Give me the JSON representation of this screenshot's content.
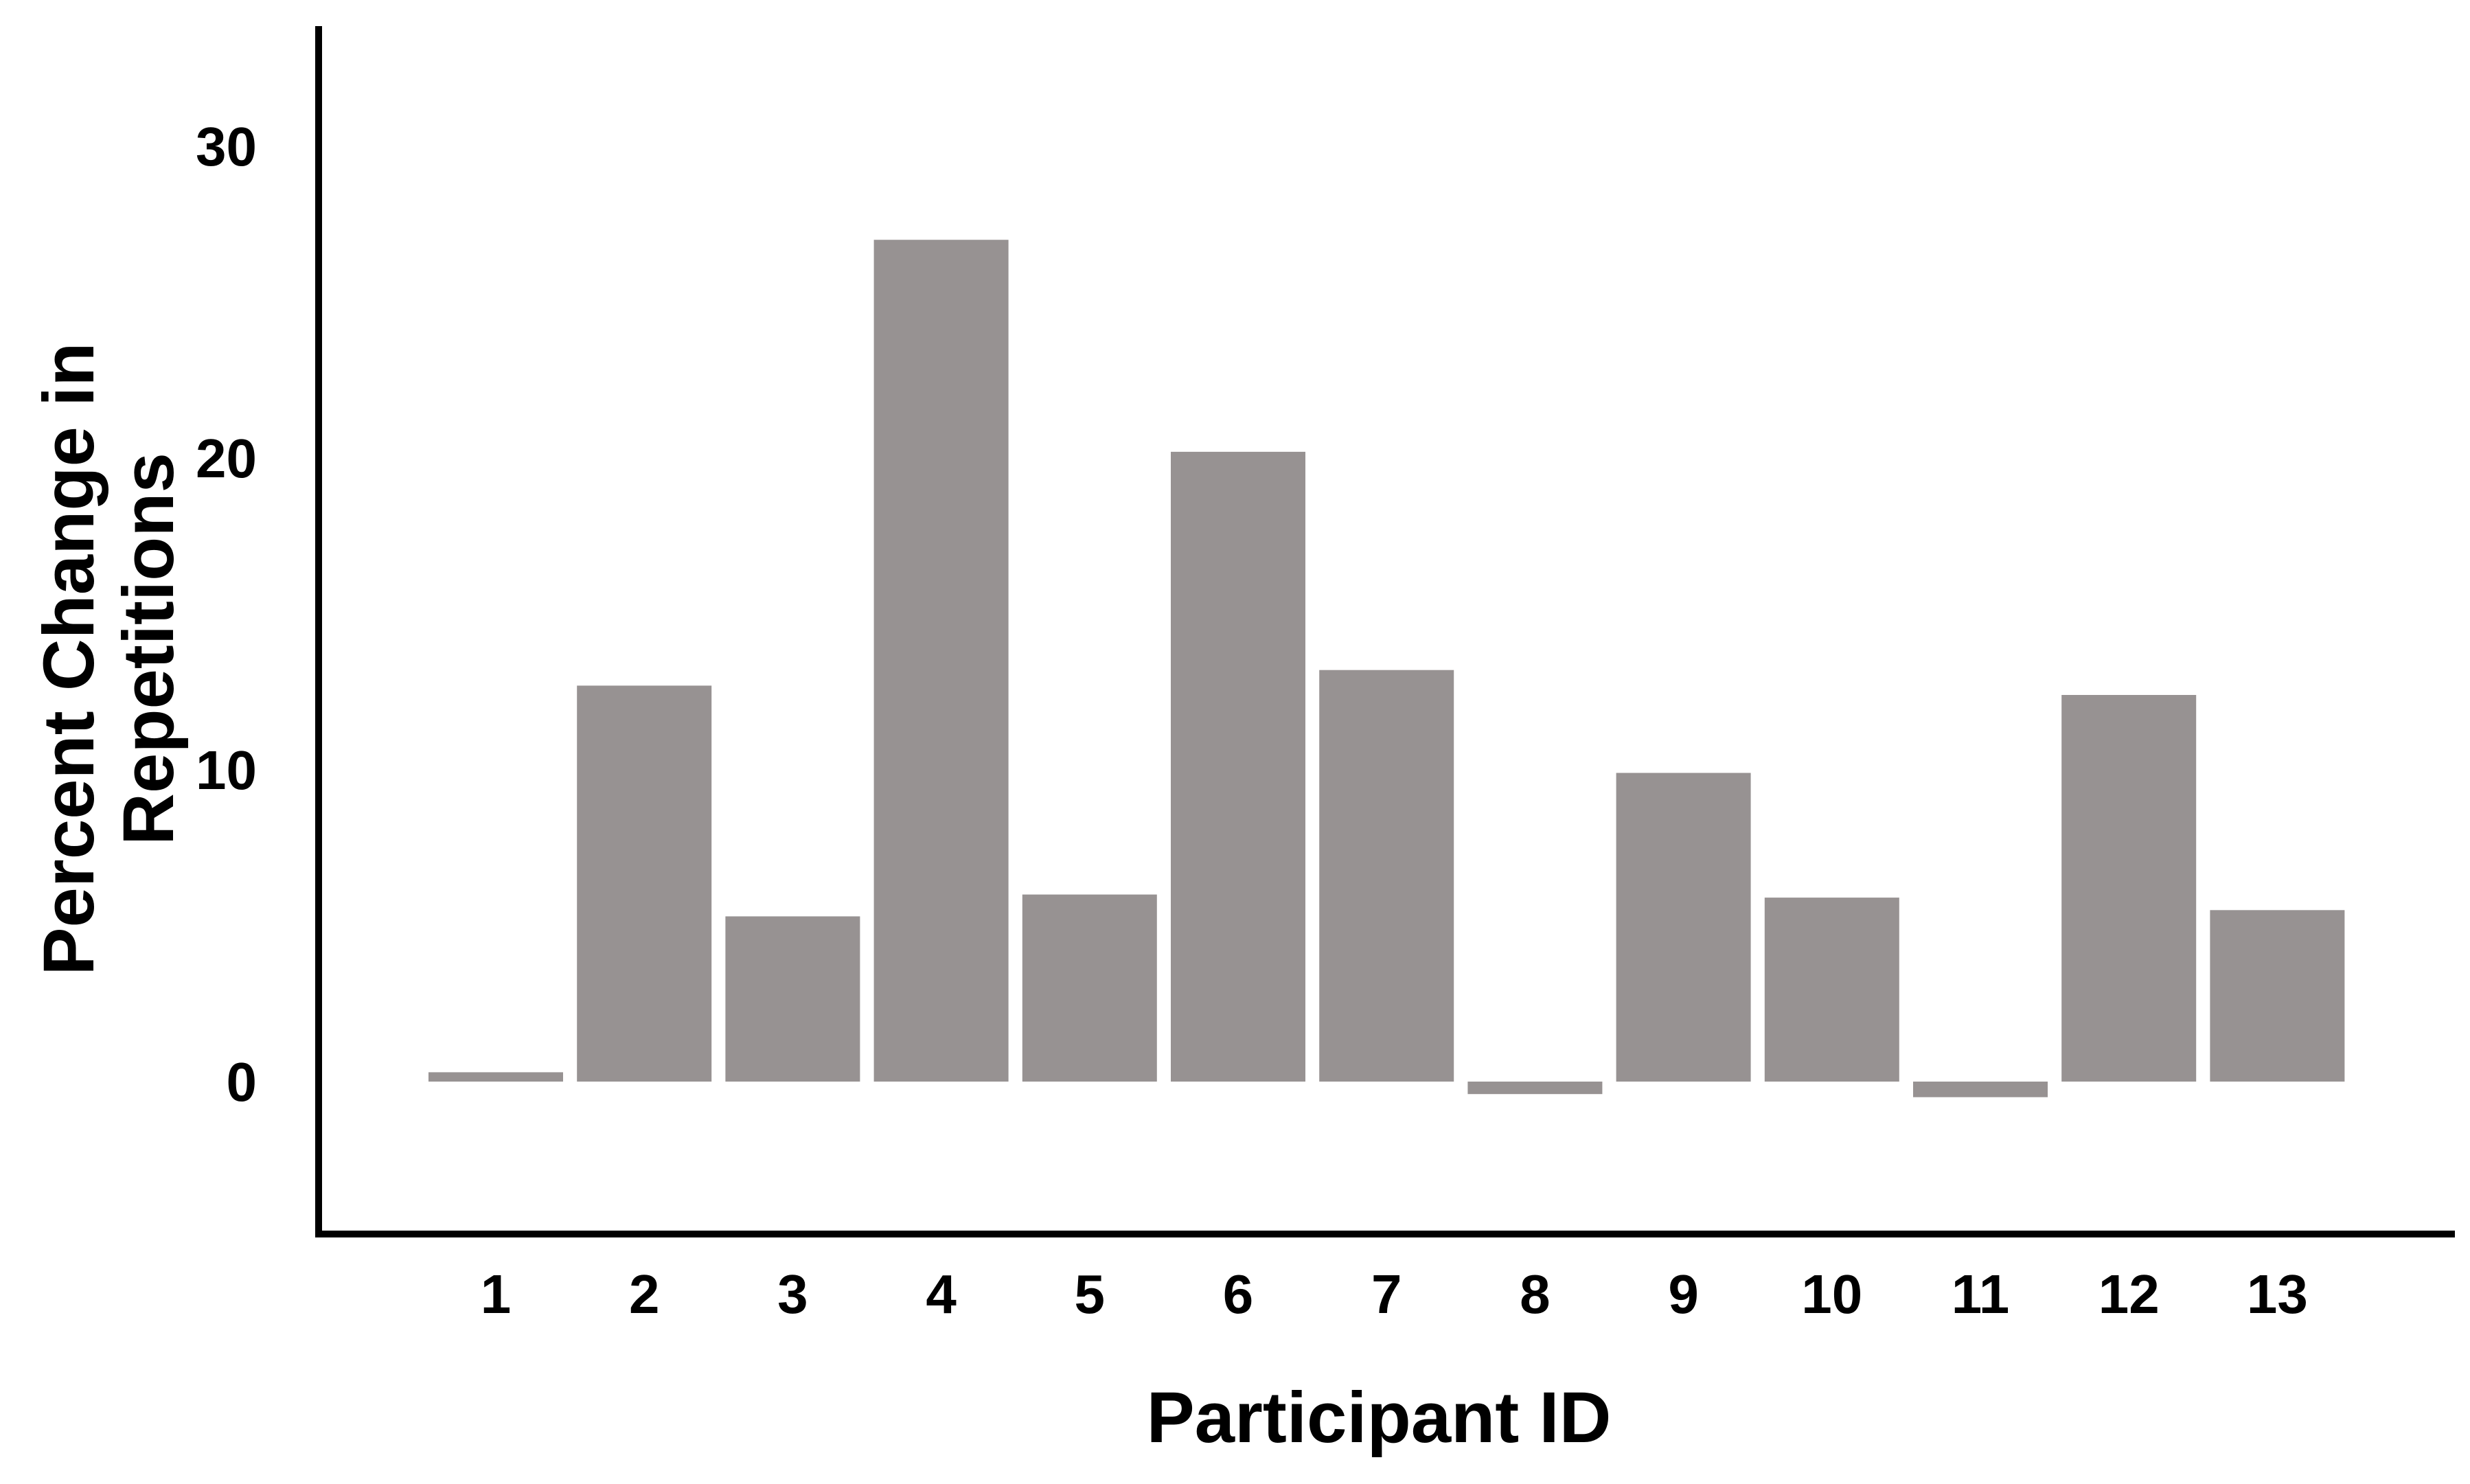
{
  "chart_data": {
    "type": "bar",
    "title": "",
    "xlabel": "Participant ID",
    "ylabel_lines": [
      "Percent Change in",
      "Repetitions"
    ],
    "categories": [
      "1",
      "2",
      "3",
      "4",
      "5",
      "6",
      "7",
      "8",
      "9",
      "10",
      "11",
      "12",
      "13"
    ],
    "values": [
      0.3,
      12.7,
      5.3,
      27.0,
      6.0,
      20.2,
      13.2,
      -0.4,
      9.9,
      5.9,
      -0.5,
      12.4,
      5.5
    ],
    "y_ticks": [
      0,
      10,
      20,
      30
    ],
    "y_tick_labels": [
      "0",
      "10",
      "20",
      "30"
    ],
    "ylim": [
      -5,
      34
    ],
    "grid": false,
    "legend": "none",
    "colors": {
      "bar": "#979292",
      "axis": "#000000",
      "background": "#ffffff"
    }
  }
}
